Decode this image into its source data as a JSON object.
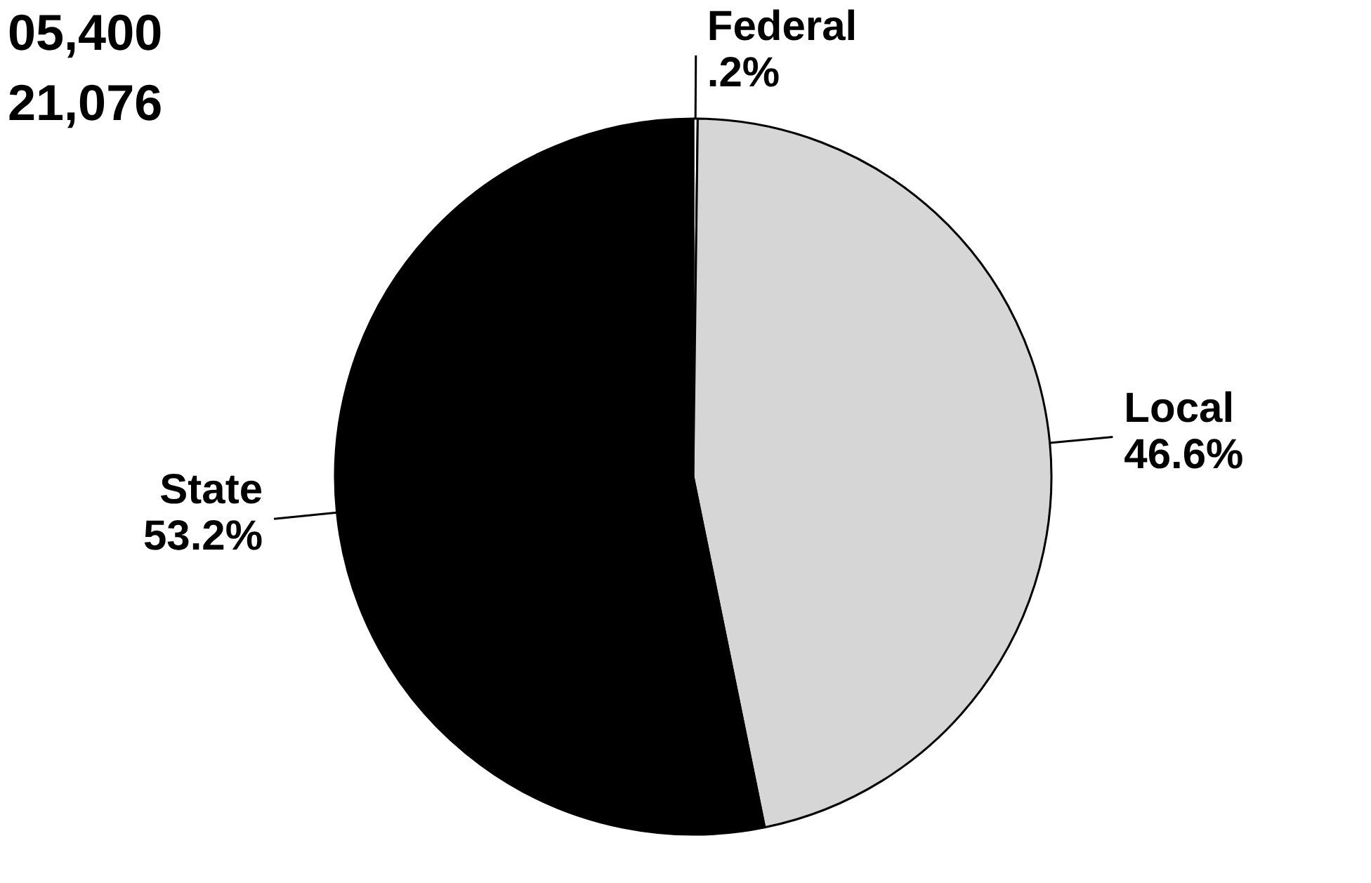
{
  "chart_data": {
    "type": "pie",
    "categories": [
      "Federal",
      "Local",
      "State"
    ],
    "values": [
      0.2,
      46.6,
      53.2
    ],
    "colors": [
      "#ffffff",
      "#d6d6d6",
      "#000000"
    ],
    "value_labels": [
      ".2%",
      "46.6%",
      "53.2%"
    ],
    "annotations": [
      "05,400",
      "21,076"
    ]
  }
}
